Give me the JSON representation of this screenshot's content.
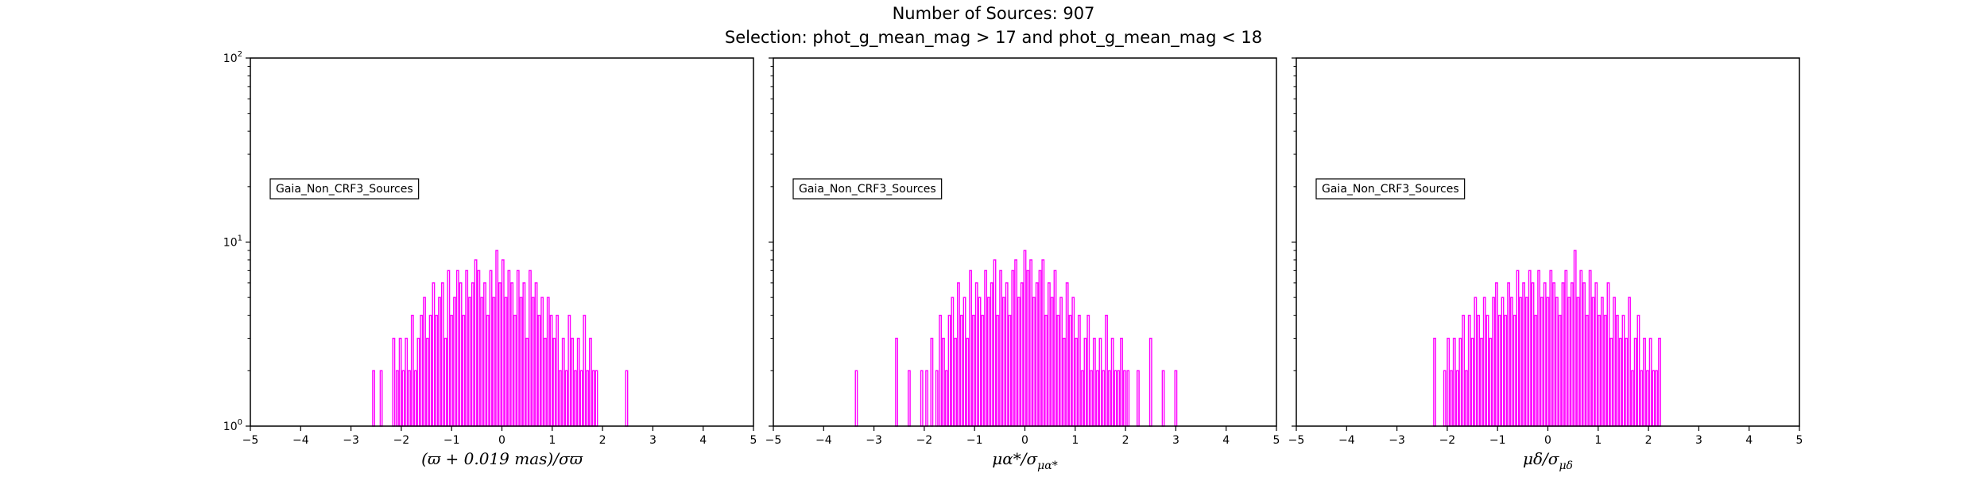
{
  "header": {
    "title": "Number of Sources: 907",
    "subtitle": "Selection: phot_g_mean_mag > 17 and phot_g_mean_mag < 18"
  },
  "colors": {
    "bars": "#ff00ff",
    "axes": "#000000",
    "legend_border": "#000000"
  },
  "chart_data": [
    {
      "type": "bar",
      "xlabel": "(ϖ + 0.019 mas)/σϖ",
      "ylabel": "",
      "xlim": [
        -5,
        5
      ],
      "ylim": [
        1,
        100
      ],
      "yscale": "log",
      "grid": false,
      "legend": {
        "entries": [
          "Gaia_Non_CRF3_Sources"
        ],
        "placement": "center-left"
      },
      "xticks": [
        "−5",
        "−4",
        "−3",
        "−2",
        "−1",
        "0",
        "1",
        "2",
        "3",
        "4",
        "5"
      ],
      "yticks": [
        "10^0",
        "10^1",
        "10^2"
      ],
      "x": [
        -2.55,
        -2.4,
        -2.15,
        -2.08,
        -2.02,
        -1.96,
        -1.9,
        -1.84,
        -1.78,
        -1.72,
        -1.66,
        -1.6,
        -1.54,
        -1.48,
        -1.42,
        -1.36,
        -1.3,
        -1.24,
        -1.18,
        -1.12,
        -1.06,
        -1.0,
        -0.94,
        -0.88,
        -0.82,
        -0.76,
        -0.7,
        -0.64,
        -0.58,
        -0.52,
        -0.46,
        -0.4,
        -0.34,
        -0.28,
        -0.22,
        -0.16,
        -0.1,
        -0.04,
        0.02,
        0.08,
        0.14,
        0.2,
        0.26,
        0.32,
        0.38,
        0.44,
        0.5,
        0.56,
        0.62,
        0.68,
        0.74,
        0.8,
        0.86,
        0.92,
        0.98,
        1.04,
        1.1,
        1.16,
        1.22,
        1.28,
        1.34,
        1.4,
        1.46,
        1.52,
        1.58,
        1.64,
        1.7,
        1.76,
        1.82,
        1.88,
        2.48
      ],
      "values": [
        2,
        2,
        3,
        2,
        3,
        2,
        3,
        2,
        4,
        2,
        3,
        4,
        5,
        3,
        4,
        6,
        4,
        5,
        6,
        3,
        7,
        4,
        5,
        7,
        6,
        4,
        7,
        5,
        6,
        8,
        7,
        5,
        6,
        4,
        7,
        5,
        9,
        6,
        8,
        5,
        7,
        6,
        4,
        7,
        5,
        6,
        3,
        7,
        5,
        6,
        4,
        5,
        3,
        5,
        4,
        3,
        4,
        2,
        3,
        2,
        4,
        3,
        2,
        3,
        2,
        4,
        2,
        3,
        2,
        2,
        2
      ]
    },
    {
      "type": "bar",
      "xlabel": "μα*/σμα*",
      "ylabel": "",
      "xlim": [
        -5,
        5
      ],
      "ylim": [
        1,
        100
      ],
      "yscale": "log",
      "grid": false,
      "legend": {
        "entries": [
          "Gaia_Non_CRF3_Sources"
        ],
        "placement": "center-left"
      },
      "xticks": [
        "−5",
        "−4",
        "−3",
        "−2",
        "−1",
        "0",
        "1",
        "2",
        "3",
        "4",
        "5"
      ],
      "yticks": [
        "10^0",
        "10^1",
        "10^2"
      ],
      "x": [
        -3.35,
        -2.55,
        -2.3,
        -2.05,
        -1.95,
        -1.85,
        -1.75,
        -1.68,
        -1.62,
        -1.56,
        -1.5,
        -1.44,
        -1.38,
        -1.32,
        -1.26,
        -1.2,
        -1.14,
        -1.08,
        -1.02,
        -0.96,
        -0.9,
        -0.84,
        -0.78,
        -0.72,
        -0.66,
        -0.6,
        -0.54,
        -0.48,
        -0.42,
        -0.36,
        -0.3,
        -0.24,
        -0.18,
        -0.12,
        -0.06,
        0.0,
        0.06,
        0.12,
        0.18,
        0.24,
        0.3,
        0.36,
        0.42,
        0.48,
        0.54,
        0.6,
        0.66,
        0.72,
        0.78,
        0.84,
        0.9,
        0.96,
        1.02,
        1.08,
        1.14,
        1.2,
        1.26,
        1.32,
        1.38,
        1.44,
        1.5,
        1.56,
        1.62,
        1.68,
        1.74,
        1.8,
        1.86,
        1.92,
        1.98,
        2.05,
        2.25,
        2.5,
        2.75,
        3.0
      ],
      "values": [
        2,
        3,
        2,
        2,
        2,
        3,
        2,
        4,
        3,
        2,
        4,
        5,
        3,
        6,
        4,
        5,
        3,
        7,
        4,
        6,
        5,
        4,
        7,
        5,
        6,
        8,
        4,
        7,
        5,
        6,
        4,
        7,
        8,
        5,
        6,
        9,
        7,
        8,
        5,
        6,
        7,
        8,
        4,
        6,
        5,
        7,
        4,
        5,
        3,
        6,
        4,
        5,
        3,
        4,
        2,
        3,
        4,
        2,
        3,
        2,
        3,
        2,
        4,
        2,
        3,
        2,
        2,
        3,
        2,
        2,
        2,
        3,
        2,
        2
      ]
    },
    {
      "type": "bar",
      "xlabel": "μδ/σμδ",
      "ylabel": "",
      "xlim": [
        -5,
        5
      ],
      "ylim": [
        1,
        100
      ],
      "yscale": "log",
      "grid": false,
      "legend": {
        "entries": [
          "Gaia_Non_CRF3_Sources"
        ],
        "placement": "center-left"
      },
      "xticks": [
        "−5",
        "−4",
        "−3",
        "−2",
        "−1",
        "0",
        "1",
        "2",
        "3",
        "4",
        "5"
      ],
      "yticks": [
        "10^0",
        "10^1",
        "10^2"
      ],
      "x": [
        -2.25,
        -2.05,
        -1.98,
        -1.92,
        -1.86,
        -1.8,
        -1.74,
        -1.68,
        -1.62,
        -1.56,
        -1.5,
        -1.44,
        -1.38,
        -1.32,
        -1.26,
        -1.2,
        -1.14,
        -1.08,
        -1.02,
        -0.96,
        -0.9,
        -0.84,
        -0.78,
        -0.72,
        -0.66,
        -0.6,
        -0.54,
        -0.48,
        -0.42,
        -0.36,
        -0.3,
        -0.24,
        -0.18,
        -0.12,
        -0.06,
        0.0,
        0.06,
        0.12,
        0.18,
        0.24,
        0.3,
        0.36,
        0.42,
        0.48,
        0.54,
        0.6,
        0.66,
        0.72,
        0.78,
        0.84,
        0.9,
        0.96,
        1.02,
        1.08,
        1.14,
        1.2,
        1.26,
        1.32,
        1.38,
        1.44,
        1.5,
        1.56,
        1.62,
        1.68,
        1.74,
        1.8,
        1.86,
        1.92,
        1.98,
        2.04,
        2.1,
        2.16,
        2.22
      ],
      "values": [
        3,
        2,
        3,
        2,
        3,
        2,
        3,
        4,
        2,
        4,
        3,
        5,
        4,
        3,
        5,
        4,
        3,
        5,
        6,
        4,
        5,
        4,
        6,
        5,
        4,
        7,
        5,
        6,
        5,
        7,
        6,
        4,
        7,
        5,
        6,
        5,
        7,
        6,
        5,
        4,
        6,
        7,
        5,
        6,
        9,
        5,
        7,
        6,
        4,
        7,
        5,
        6,
        4,
        5,
        4,
        6,
        3,
        5,
        4,
        3,
        4,
        3,
        5,
        2,
        3,
        4,
        2,
        3,
        2,
        3,
        2,
        2,
        3
      ]
    }
  ]
}
